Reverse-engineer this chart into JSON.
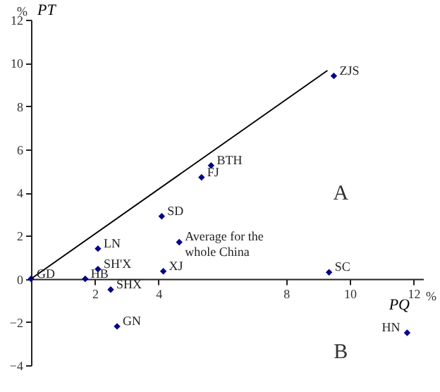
{
  "chart_data": {
    "type": "scatter",
    "xlabel": "PQ",
    "ylabel": "PT",
    "x": [
      0,
      1.7,
      2.1,
      2.1,
      2.5,
      2.7,
      4.1,
      4.15,
      4.65,
      9.35,
      11.8,
      5.35,
      5.65,
      9.5
    ],
    "values": [
      0,
      0,
      1.4,
      0.45,
      -0.5,
      -2.2,
      2.9,
      0.35,
      1.7,
      0.3,
      -2.5,
      4.7,
      5.25,
      9.4
    ],
    "value_labels": [
      "GD",
      "HB",
      "LN",
      "SH'X",
      "SHX",
      "GN",
      "SD",
      "XJ",
      "Average for the\nwhole China",
      "SC",
      "HN",
      "FJ",
      "BTH",
      "ZJS"
    ],
    "color": "#00008b",
    "marker": "diamond",
    "series": [
      {
        "type": "line",
        "color": "#000000",
        "marker": "none",
        "x": [
          0,
          9.3
        ],
        "values": [
          0,
          9.65
        ]
      }
    ],
    "xlim": [
      0,
      12.3
    ],
    "ylim": [
      -4,
      12
    ],
    "xticks": [
      2,
      4,
      8,
      10,
      12
    ],
    "yticks": [
      -4,
      -2,
      0,
      2,
      4,
      6,
      8,
      10,
      12
    ],
    "grid": false,
    "annotations": [
      "A",
      "B",
      "%",
      "%"
    ]
  }
}
